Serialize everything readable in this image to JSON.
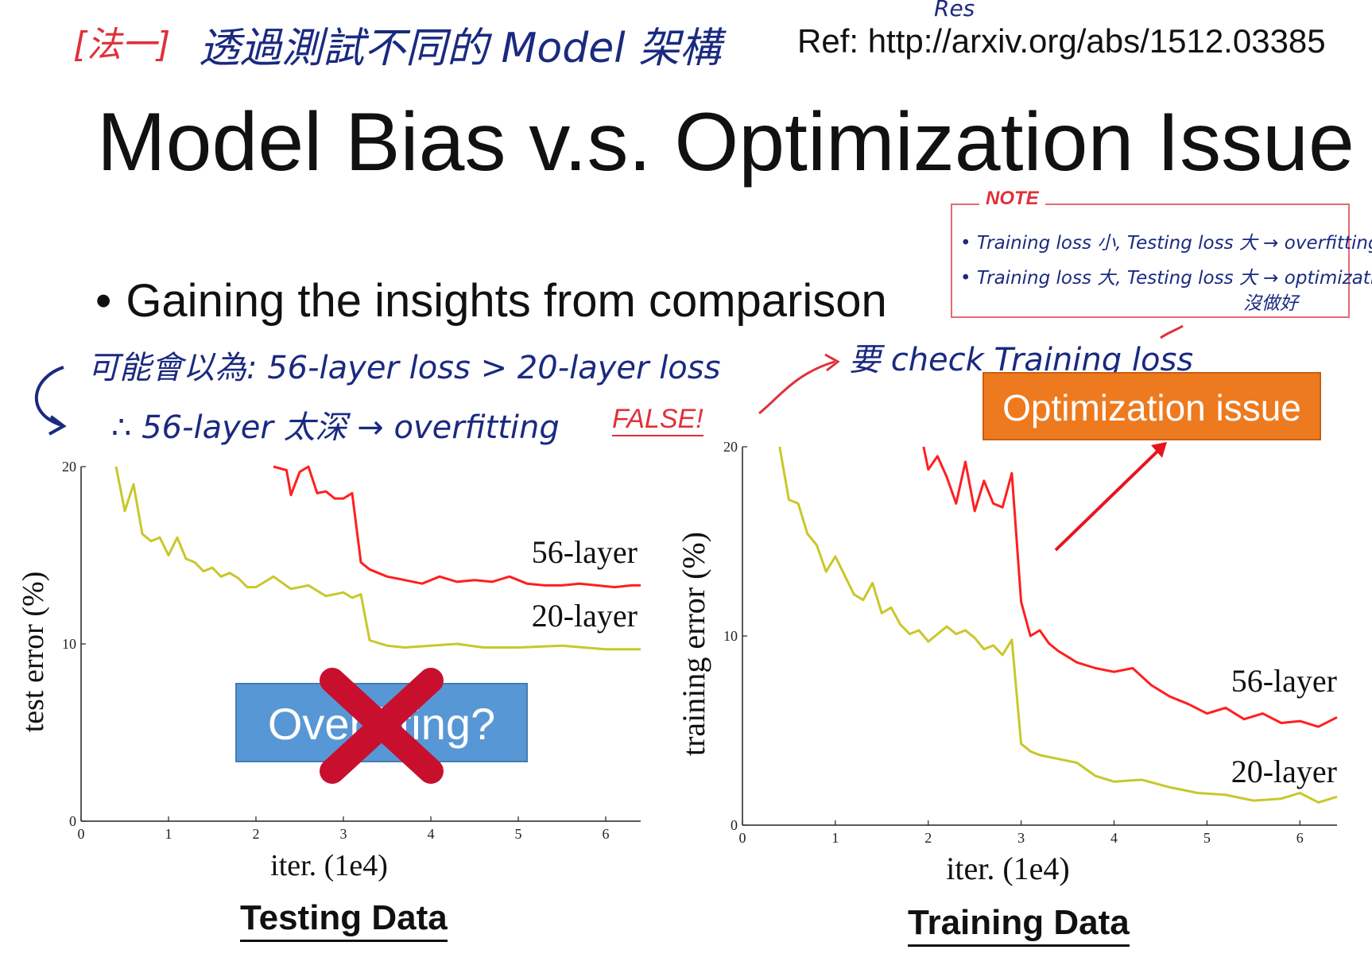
{
  "header": {
    "method_tag": "[法一]",
    "method_text": "透過測試不同的 Model 架構",
    "res_note": "Res",
    "ref": "Ref: http://arxiv.org/abs/1512.03385"
  },
  "title": "Model Bias v.s. Optimization Issue",
  "note": {
    "label": "NOTE",
    "line1": "• Training loss 小, Testing loss 大 → overfitting",
    "line2": "• Training loss 大, Testing loss 大 → optimization",
    "line3": "沒做好"
  },
  "bullet": {
    "dot": "•",
    "text": "Gaining the insights from comparison"
  },
  "handwriting": {
    "left_line1": "可能會以為: 56-layer loss > 20-layer loss",
    "left_line2": "∴ 56-layer 太深 → overfitting",
    "false_label": "FALSE!",
    "right_line": "要 check Training loss"
  },
  "callouts": {
    "optimization": "Optimization issue",
    "overfitting": "Overfitting?"
  },
  "captions": {
    "left": "Testing Data",
    "right": "Training Data"
  },
  "colors": {
    "red_series": "#ff1f1f",
    "yellow_series": "#c8c82a",
    "orange_box": "#ee7a1f",
    "blue_box": "#4a8fd2",
    "cross": "#c8102e"
  },
  "icons": {
    "cross": "cross-mark-icon",
    "arrows": "arrow-icon"
  },
  "chart_data": [
    {
      "type": "line",
      "xlabel": "iter. (1e4)",
      "ylabel": "test error (%)",
      "xlim": [
        0,
        6.4
      ],
      "ylim": [
        0,
        20
      ],
      "xticks": [
        0,
        1,
        2,
        3,
        4,
        5,
        6
      ],
      "yticks": [
        0,
        10,
        20
      ],
      "series": [
        {
          "name": "56-layer",
          "x": [
            2.2,
            2.35,
            2.4,
            2.5,
            2.6,
            2.7,
            2.8,
            2.9,
            3.0,
            3.1,
            3.2,
            3.3,
            3.5,
            3.7,
            3.9,
            4.1,
            4.3,
            4.5,
            4.7,
            4.9,
            5.1,
            5.3,
            5.5,
            5.7,
            5.9,
            6.1,
            6.3,
            6.4
          ],
          "y": [
            20,
            19.8,
            18.4,
            19.7,
            20,
            18.5,
            18.6,
            18.2,
            18.2,
            18.5,
            14.6,
            14.2,
            13.8,
            13.6,
            13.4,
            13.8,
            13.5,
            13.6,
            13.5,
            13.8,
            13.4,
            13.3,
            13.3,
            13.4,
            13.3,
            13.2,
            13.3,
            13.3
          ]
        },
        {
          "name": "20-layer",
          "x": [
            0.4,
            0.5,
            0.6,
            0.7,
            0.8,
            0.9,
            1.0,
            1.1,
            1.2,
            1.3,
            1.4,
            1.5,
            1.6,
            1.7,
            1.8,
            1.9,
            2.0,
            2.2,
            2.4,
            2.6,
            2.8,
            3.0,
            3.1,
            3.2,
            3.3,
            3.5,
            3.7,
            4.0,
            4.3,
            4.6,
            5.0,
            5.5,
            6.0,
            6.4
          ],
          "y": [
            20,
            17.5,
            19,
            16.2,
            15.8,
            16,
            15,
            16,
            14.8,
            14.6,
            14.1,
            14.3,
            13.8,
            14,
            13.7,
            13.2,
            13.2,
            13.8,
            13.1,
            13.3,
            12.7,
            12.9,
            12.6,
            12.8,
            10.2,
            9.9,
            9.8,
            9.9,
            10.0,
            9.8,
            9.8,
            9.9,
            9.7,
            9.7
          ]
        }
      ]
    },
    {
      "type": "line",
      "xlabel": "iter. (1e4)",
      "ylabel": "training error (%)",
      "xlim": [
        0,
        6.4
      ],
      "ylim": [
        0,
        20
      ],
      "xticks": [
        0,
        1,
        2,
        3,
        4,
        5,
        6
      ],
      "yticks": [
        0,
        10,
        20
      ],
      "series": [
        {
          "name": "56-layer",
          "x": [
            1.95,
            2.0,
            2.1,
            2.2,
            2.3,
            2.4,
            2.5,
            2.6,
            2.7,
            2.8,
            2.9,
            3.0,
            3.1,
            3.2,
            3.3,
            3.4,
            3.6,
            3.8,
            4.0,
            4.2,
            4.4,
            4.6,
            4.8,
            5.0,
            5.2,
            5.4,
            5.6,
            5.8,
            6.0,
            6.2,
            6.4
          ],
          "y": [
            20,
            18.8,
            19.5,
            18.4,
            17,
            19.2,
            16.6,
            18.2,
            17,
            16.8,
            18.6,
            11.8,
            10,
            10.3,
            9.6,
            9.2,
            8.6,
            8.3,
            8.1,
            8.3,
            7.4,
            6.8,
            6.4,
            5.9,
            6.2,
            5.6,
            5.9,
            5.4,
            5.5,
            5.2,
            5.7
          ]
        },
        {
          "name": "20-layer",
          "x": [
            0.4,
            0.5,
            0.6,
            0.7,
            0.8,
            0.9,
            1.0,
            1.1,
            1.2,
            1.3,
            1.4,
            1.5,
            1.6,
            1.7,
            1.8,
            1.9,
            2.0,
            2.1,
            2.2,
            2.3,
            2.4,
            2.5,
            2.6,
            2.7,
            2.8,
            2.9,
            3.0,
            3.1,
            3.2,
            3.4,
            3.6,
            3.8,
            4.0,
            4.3,
            4.6,
            4.9,
            5.2,
            5.5,
            5.8,
            6.0,
            6.2,
            6.4
          ],
          "y": [
            20,
            17.2,
            17,
            15.4,
            14.8,
            13.4,
            14.2,
            13.2,
            12.2,
            11.9,
            12.8,
            11.2,
            11.5,
            10.6,
            10.1,
            10.3,
            9.7,
            10.1,
            10.5,
            10.1,
            10.3,
            9.9,
            9.3,
            9.5,
            9.0,
            9.8,
            4.3,
            3.9,
            3.7,
            3.5,
            3.3,
            2.6,
            2.3,
            2.4,
            2.0,
            1.7,
            1.6,
            1.3,
            1.4,
            1.7,
            1.2,
            1.5
          ]
        }
      ]
    }
  ]
}
